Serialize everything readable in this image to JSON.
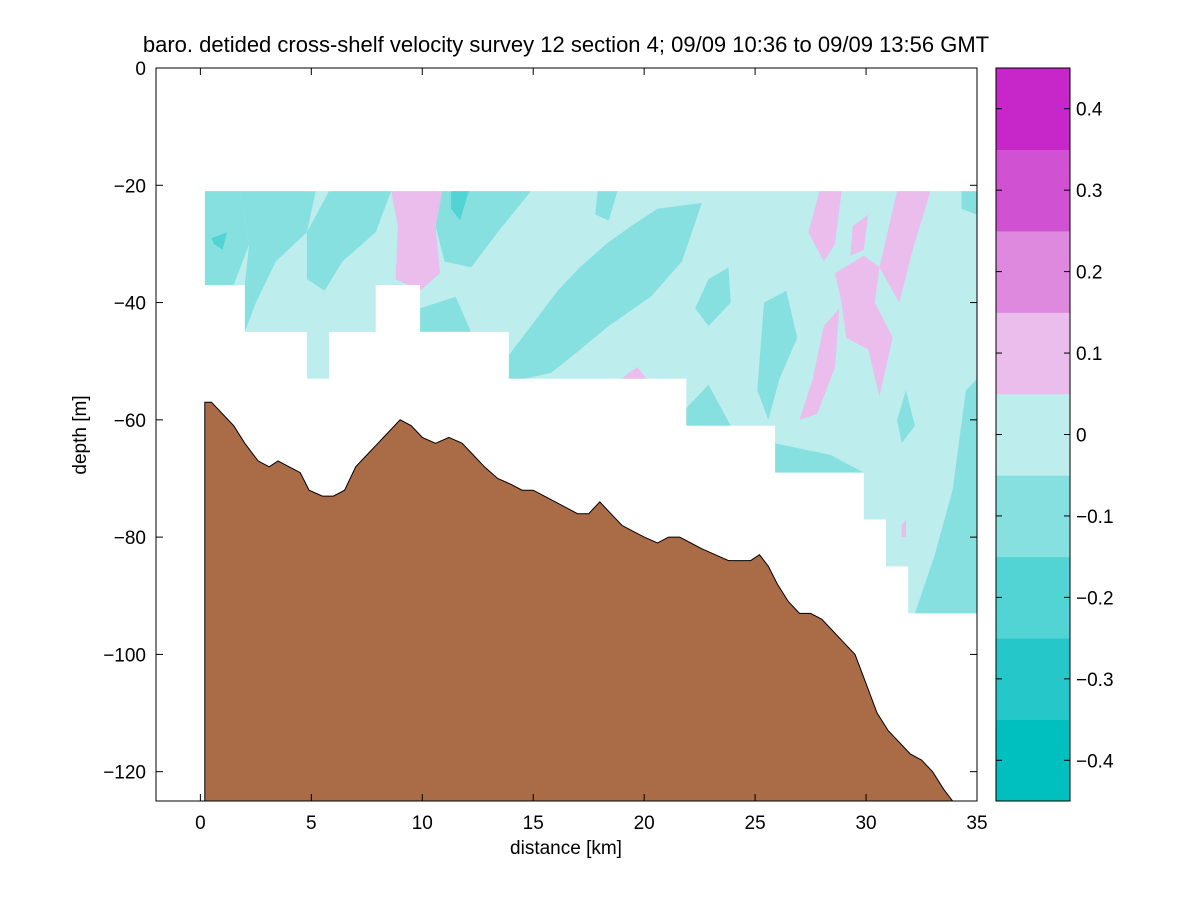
{
  "chart_data": {
    "type": "filled-contour",
    "title": "baro. detided cross-shelf velocity survey 12 section 4; 09/09 10:36 to 09/09 13:56 GMT",
    "xlabel": "distance [km]",
    "ylabel": "depth [m]",
    "xlim": [
      -2,
      35
    ],
    "ylim": [
      -125,
      0
    ],
    "xticks": [
      0,
      5,
      10,
      15,
      20,
      25,
      30,
      35
    ],
    "yticks": [
      0,
      -20,
      -40,
      -60,
      -80,
      -100,
      -120
    ],
    "colorbar": {
      "range": [
        -0.45,
        0.45
      ],
      "ticks": [
        0.4,
        0.3,
        0.2,
        0.1,
        0,
        -0.1,
        -0.2,
        -0.3,
        -0.4
      ],
      "tick_labels": [
        "0.4",
        "0.3",
        "0.2",
        "0.1",
        "0",
        "−0.1",
        "−0.2",
        "−0.3",
        "−0.4"
      ],
      "levels": [
        -0.45,
        -0.35,
        -0.25,
        -0.15,
        -0.05,
        0.05,
        0.15,
        0.25,
        0.35,
        0.45
      ],
      "colors": [
        "#00bfbf",
        "#26c7c8",
        "#52d3d4",
        "#87e0e0",
        "#bdeded",
        "#ebbdec",
        "#de88de",
        "#d052d3",
        "#c726c9",
        "#bf00bf"
      ]
    },
    "data_top_depth": -21,
    "data_bottom_steps": [
      {
        "x": [
          0.2,
          2.0
        ],
        "depth": -37
      },
      {
        "x": [
          2.0,
          4.8
        ],
        "depth": -45
      },
      {
        "x": [
          4.8,
          5.8
        ],
        "depth": -53
      },
      {
        "x": [
          5.8,
          7.9
        ],
        "depth": -45
      },
      {
        "x": [
          7.9,
          9.9
        ],
        "depth": -37
      },
      {
        "x": [
          9.9,
          13.9
        ],
        "depth": -45
      },
      {
        "x": [
          13.9,
          21.9
        ],
        "depth": -53
      },
      {
        "x": [
          21.9,
          25.9
        ],
        "depth": -61
      },
      {
        "x": [
          25.9,
          29.9
        ],
        "depth": -69
      },
      {
        "x": [
          29.9,
          30.9
        ],
        "depth": -77
      },
      {
        "x": [
          30.9,
          31.9
        ],
        "depth": -85
      },
      {
        "x": [
          31.9,
          35.0
        ],
        "depth": -93
      }
    ],
    "velocity_patches": [
      {
        "level": -0.1,
        "points": [
          [
            0.2,
            -21
          ],
          [
            1.8,
            -21
          ],
          [
            2.2,
            -30
          ],
          [
            1.5,
            -37
          ],
          [
            0.2,
            -37
          ]
        ]
      },
      {
        "level": -0.1,
        "points": [
          [
            1.8,
            -21
          ],
          [
            5.2,
            -21
          ],
          [
            4.8,
            -28
          ],
          [
            3.4,
            -33
          ],
          [
            2.5,
            -40
          ],
          [
            2.0,
            -45
          ],
          [
            2.0,
            -37
          ],
          [
            2.2,
            -30
          ]
        ]
      },
      {
        "level": -0.1,
        "points": [
          [
            5.8,
            -21
          ],
          [
            8.6,
            -21
          ],
          [
            7.9,
            -28
          ],
          [
            6.4,
            -33
          ],
          [
            5.6,
            -38
          ],
          [
            4.8,
            -36
          ],
          [
            4.8,
            -28
          ]
        ]
      },
      {
        "level": -0.1,
        "points": [
          [
            10.9,
            -21
          ],
          [
            14.9,
            -21
          ],
          [
            13.4,
            -28
          ],
          [
            12.2,
            -34
          ],
          [
            11.0,
            -33
          ],
          [
            10.6,
            -27
          ]
        ]
      },
      {
        "level": -0.1,
        "points": [
          [
            9.9,
            -41
          ],
          [
            11.5,
            -39
          ],
          [
            12.2,
            -45
          ],
          [
            9.9,
            -45
          ]
        ]
      },
      {
        "level": -0.1,
        "points": [
          [
            17.9,
            -21
          ],
          [
            18.8,
            -21
          ],
          [
            18.4,
            -26
          ],
          [
            17.8,
            -25
          ]
        ]
      },
      {
        "level": -0.1,
        "points": [
          [
            20.6,
            -24
          ],
          [
            22.6,
            -23
          ],
          [
            21.7,
            -33
          ],
          [
            20.3,
            -39
          ],
          [
            18.4,
            -44
          ],
          [
            16.8,
            -49
          ],
          [
            15.8,
            -52
          ],
          [
            14.6,
            -53
          ],
          [
            13.9,
            -53
          ],
          [
            13.9,
            -49
          ],
          [
            15.1,
            -43
          ],
          [
            16.1,
            -38
          ],
          [
            17.1,
            -34
          ],
          [
            18.3,
            -30
          ],
          [
            19.4,
            -27
          ]
        ]
      },
      {
        "level": -0.1,
        "points": [
          [
            22.9,
            -36
          ],
          [
            23.8,
            -34
          ],
          [
            23.9,
            -40
          ],
          [
            22.9,
            -44
          ],
          [
            22.3,
            -41
          ]
        ]
      },
      {
        "level": -0.1,
        "points": [
          [
            25.4,
            -40
          ],
          [
            26.4,
            -38
          ],
          [
            26.9,
            -46
          ],
          [
            26.1,
            -53
          ],
          [
            25.6,
            -60
          ],
          [
            25.1,
            -55
          ]
        ]
      },
      {
        "level": -0.1,
        "points": [
          [
            21.9,
            -58
          ],
          [
            22.9,
            -54
          ],
          [
            23.9,
            -61
          ],
          [
            21.9,
            -61
          ]
        ]
      },
      {
        "level": -0.1,
        "points": [
          [
            25.9,
            -64
          ],
          [
            28.4,
            -66
          ],
          [
            29.9,
            -69
          ],
          [
            25.9,
            -69
          ]
        ]
      },
      {
        "level": -0.1,
        "points": [
          [
            34.3,
            -21
          ],
          [
            35.0,
            -21
          ],
          [
            35.0,
            -25
          ],
          [
            34.3,
            -24
          ]
        ]
      },
      {
        "level": -0.1,
        "points": [
          [
            34.5,
            -55
          ],
          [
            35.0,
            -53
          ],
          [
            35.0,
            -93
          ],
          [
            32.2,
            -93
          ],
          [
            33.1,
            -83
          ],
          [
            33.9,
            -72
          ]
        ]
      },
      {
        "level": -0.1,
        "points": [
          [
            31.4,
            -60
          ],
          [
            31.8,
            -55
          ],
          [
            32.2,
            -61
          ],
          [
            31.6,
            -64
          ]
        ]
      },
      {
        "level": -0.2,
        "points": [
          [
            11.3,
            -21
          ],
          [
            12.1,
            -21
          ],
          [
            11.7,
            -26
          ],
          [
            11.3,
            -24
          ]
        ]
      },
      {
        "level": -0.2,
        "points": [
          [
            0.5,
            -29
          ],
          [
            1.2,
            -28
          ],
          [
            1.0,
            -31
          ],
          [
            0.6,
            -30
          ]
        ]
      },
      {
        "level": 0.1,
        "points": [
          [
            8.6,
            -21
          ],
          [
            10.9,
            -21
          ],
          [
            10.6,
            -27
          ],
          [
            10.8,
            -35
          ],
          [
            9.9,
            -38
          ],
          [
            8.8,
            -36
          ],
          [
            8.9,
            -27
          ]
        ]
      },
      {
        "level": 0.1,
        "points": [
          [
            9.6,
            -21
          ],
          [
            9.8,
            -21
          ],
          [
            9.8,
            -29
          ],
          [
            9.6,
            -30
          ]
        ]
      },
      {
        "level": 0.1,
        "points": [
          [
            27.9,
            -21
          ],
          [
            28.9,
            -21
          ],
          [
            28.6,
            -30
          ],
          [
            28.1,
            -33
          ],
          [
            27.4,
            -28
          ]
        ]
      },
      {
        "level": 0.1,
        "points": [
          [
            29.4,
            -27
          ],
          [
            30.1,
            -25
          ],
          [
            29.9,
            -31
          ],
          [
            29.3,
            -32
          ]
        ]
      },
      {
        "level": 0.1,
        "points": [
          [
            31.4,
            -21
          ],
          [
            32.9,
            -21
          ],
          [
            32.1,
            -31
          ],
          [
            31.5,
            -40
          ],
          [
            30.6,
            -34
          ]
        ]
      },
      {
        "level": 0.1,
        "points": [
          [
            28.6,
            -35
          ],
          [
            29.9,
            -32
          ],
          [
            30.6,
            -34
          ],
          [
            30.4,
            -40
          ],
          [
            31.2,
            -46
          ],
          [
            30.6,
            -56
          ],
          [
            30.1,
            -48
          ],
          [
            29.1,
            -46
          ],
          [
            28.9,
            -40
          ]
        ]
      },
      {
        "level": 0.1,
        "points": [
          [
            28.1,
            -44
          ],
          [
            28.8,
            -41
          ],
          [
            28.6,
            -51
          ],
          [
            28.2,
            -55
          ],
          [
            27.8,
            -59
          ],
          [
            27.0,
            -60
          ],
          [
            27.6,
            -53
          ]
        ]
      },
      {
        "level": 0.1,
        "points": [
          [
            19.3,
            -52
          ],
          [
            19.7,
            -51
          ],
          [
            20.1,
            -53
          ],
          [
            19.0,
            -53
          ]
        ]
      },
      {
        "level": 0.1,
        "points": [
          [
            31.6,
            -78
          ],
          [
            31.8,
            -77
          ],
          [
            31.8,
            -80
          ],
          [
            31.6,
            -80
          ]
        ]
      }
    ],
    "bathymetry": [
      [
        0.2,
        -125
      ],
      [
        0.2,
        -57
      ],
      [
        0.5,
        -57
      ],
      [
        1.0,
        -59
      ],
      [
        1.5,
        -61
      ],
      [
        2.0,
        -64
      ],
      [
        2.6,
        -67
      ],
      [
        3.1,
        -68
      ],
      [
        3.5,
        -67
      ],
      [
        4.0,
        -68
      ],
      [
        4.5,
        -69
      ],
      [
        4.9,
        -72
      ],
      [
        5.5,
        -73
      ],
      [
        6.0,
        -73
      ],
      [
        6.5,
        -72
      ],
      [
        7.0,
        -68
      ],
      [
        7.5,
        -66
      ],
      [
        8.0,
        -64
      ],
      [
        8.5,
        -62
      ],
      [
        9.0,
        -60
      ],
      [
        9.5,
        -61
      ],
      [
        10.0,
        -63
      ],
      [
        10.6,
        -64
      ],
      [
        11.2,
        -63
      ],
      [
        11.8,
        -64
      ],
      [
        12.3,
        -66
      ],
      [
        12.8,
        -68
      ],
      [
        13.4,
        -70
      ],
      [
        14.0,
        -71
      ],
      [
        14.5,
        -72
      ],
      [
        15.0,
        -72
      ],
      [
        15.5,
        -73
      ],
      [
        16.0,
        -74
      ],
      [
        16.5,
        -75
      ],
      [
        17.0,
        -76
      ],
      [
        17.5,
        -76
      ],
      [
        18.0,
        -74
      ],
      [
        18.5,
        -76
      ],
      [
        19.0,
        -78
      ],
      [
        19.5,
        -79
      ],
      [
        20.0,
        -80
      ],
      [
        20.6,
        -81
      ],
      [
        21.1,
        -80
      ],
      [
        21.6,
        -80
      ],
      [
        22.1,
        -81
      ],
      [
        22.6,
        -82
      ],
      [
        23.2,
        -83
      ],
      [
        23.8,
        -84
      ],
      [
        24.3,
        -84
      ],
      [
        24.8,
        -84
      ],
      [
        25.2,
        -83
      ],
      [
        25.6,
        -85
      ],
      [
        26.0,
        -88
      ],
      [
        26.5,
        -91
      ],
      [
        27.0,
        -93
      ],
      [
        27.5,
        -93
      ],
      [
        28.0,
        -94
      ],
      [
        28.5,
        -96
      ],
      [
        29.0,
        -98
      ],
      [
        29.5,
        -100
      ],
      [
        30.0,
        -105
      ],
      [
        30.5,
        -110
      ],
      [
        31.0,
        -113
      ],
      [
        31.5,
        -115
      ],
      [
        32.0,
        -117
      ],
      [
        32.5,
        -118
      ],
      [
        33.0,
        -120
      ],
      [
        33.5,
        -123
      ],
      [
        33.9,
        -125
      ]
    ]
  }
}
